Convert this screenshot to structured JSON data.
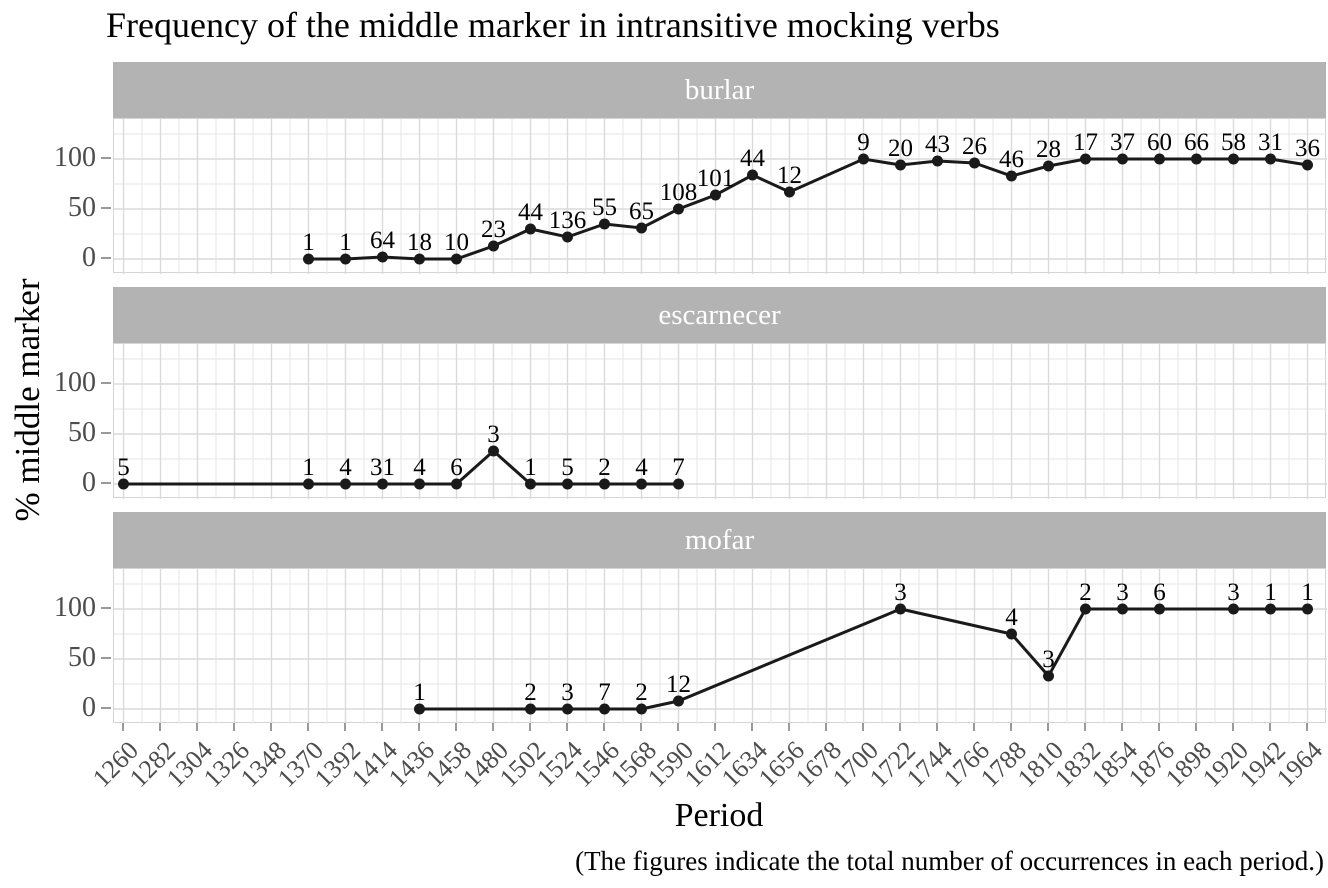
{
  "title": "Frequency of the middle marker in intransitive mocking verbs",
  "caption": "(The figures indicate the total number of occurrences in each period.)",
  "axes": {
    "x_label": "Period",
    "y_label": "% middle marker",
    "y_ticks": [
      100,
      50,
      0
    ],
    "x_ticks": [
      1260,
      1282,
      1304,
      1326,
      1348,
      1370,
      1392,
      1414,
      1436,
      1458,
      1480,
      1502,
      1524,
      1546,
      1568,
      1590,
      1612,
      1634,
      1656,
      1678,
      1700,
      1722,
      1744,
      1766,
      1788,
      1810,
      1832,
      1854,
      1876,
      1898,
      1920,
      1942,
      1964
    ]
  },
  "colors": {
    "strip_bg": "#b3b3b3",
    "strip_text": "#ffffff",
    "series": "#1a1a1a",
    "grid_major": "#dadada",
    "grid_minor": "#e9e9e9",
    "axis_text": "#4d4d4d",
    "tick_mark": "#9a9a9a"
  },
  "chart_data": {
    "type": "line",
    "title": "Frequency of the middle marker in intransitive mocking verbs",
    "xlabel": "Period",
    "ylabel": "% middle marker",
    "xlim": [
      1260,
      1964
    ],
    "ylim": [
      0,
      100
    ],
    "x_tick_step": 22,
    "grid": "major+minor",
    "legend": "none",
    "point_fields": "period / percent middle marker / total occurrences label",
    "facets": [
      {
        "label": "burlar",
        "points": [
          {
            "period": 1370,
            "pct": 0,
            "n": "1"
          },
          {
            "period": 1392,
            "pct": 0,
            "n": "1"
          },
          {
            "period": 1414,
            "pct": 2,
            "n": "64"
          },
          {
            "period": 1436,
            "pct": 0,
            "n": "18"
          },
          {
            "period": 1458,
            "pct": 0,
            "n": "10"
          },
          {
            "period": 1480,
            "pct": 13,
            "n": "23"
          },
          {
            "period": 1502,
            "pct": 30,
            "n": "44"
          },
          {
            "period": 1524,
            "pct": 22,
            "n": "136"
          },
          {
            "period": 1546,
            "pct": 35,
            "n": "55"
          },
          {
            "period": 1568,
            "pct": 31,
            "n": "65"
          },
          {
            "period": 1590,
            "pct": 50,
            "n": "108"
          },
          {
            "period": 1612,
            "pct": 64,
            "n": "101"
          },
          {
            "period": 1634,
            "pct": 84,
            "n": "44"
          },
          {
            "period": 1656,
            "pct": 67,
            "n": "12"
          },
          {
            "period": 1700,
            "pct": 100,
            "n": "9"
          },
          {
            "period": 1722,
            "pct": 94,
            "n": "20"
          },
          {
            "period": 1744,
            "pct": 98,
            "n": "43"
          },
          {
            "period": 1766,
            "pct": 96,
            "n": "26"
          },
          {
            "period": 1788,
            "pct": 83,
            "n": "46"
          },
          {
            "period": 1810,
            "pct": 93,
            "n": "28"
          },
          {
            "period": 1832,
            "pct": 100,
            "n": "17"
          },
          {
            "period": 1854,
            "pct": 100,
            "n": "37"
          },
          {
            "period": 1876,
            "pct": 100,
            "n": "60"
          },
          {
            "period": 1898,
            "pct": 100,
            "n": "66"
          },
          {
            "period": 1920,
            "pct": 100,
            "n": "58"
          },
          {
            "period": 1942,
            "pct": 100,
            "n": "31"
          },
          {
            "period": 1964,
            "pct": 94,
            "n": "36"
          }
        ]
      },
      {
        "label": "escarnecer",
        "points": [
          {
            "period": 1260,
            "pct": 0,
            "n": "5"
          },
          {
            "period": 1370,
            "pct": 0,
            "n": "1"
          },
          {
            "period": 1392,
            "pct": 0,
            "n": "4"
          },
          {
            "period": 1414,
            "pct": 0,
            "n": "31"
          },
          {
            "period": 1436,
            "pct": 0,
            "n": "4"
          },
          {
            "period": 1458,
            "pct": 0,
            "n": "6"
          },
          {
            "period": 1480,
            "pct": 33,
            "n": "3"
          },
          {
            "period": 1502,
            "pct": 0,
            "n": "1"
          },
          {
            "period": 1524,
            "pct": 0,
            "n": "5"
          },
          {
            "period": 1546,
            "pct": 0,
            "n": "2"
          },
          {
            "period": 1568,
            "pct": 0,
            "n": "4"
          },
          {
            "period": 1590,
            "pct": 0,
            "n": "7"
          }
        ]
      },
      {
        "label": "mofar",
        "points": [
          {
            "period": 1436,
            "pct": 0,
            "n": "1"
          },
          {
            "period": 1502,
            "pct": 0,
            "n": "2"
          },
          {
            "period": 1524,
            "pct": 0,
            "n": "3"
          },
          {
            "period": 1546,
            "pct": 0,
            "n": "7"
          },
          {
            "period": 1568,
            "pct": 0,
            "n": "2"
          },
          {
            "period": 1590,
            "pct": 8,
            "n": "12"
          },
          {
            "period": 1722,
            "pct": 100,
            "n": "3"
          },
          {
            "period": 1788,
            "pct": 75,
            "n": "4"
          },
          {
            "period": 1810,
            "pct": 33,
            "n": "3"
          },
          {
            "period": 1832,
            "pct": 100,
            "n": "2"
          },
          {
            "period": 1854,
            "pct": 100,
            "n": "3"
          },
          {
            "period": 1876,
            "pct": 100,
            "n": "6"
          },
          {
            "period": 1920,
            "pct": 100,
            "n": "3"
          },
          {
            "period": 1942,
            "pct": 100,
            "n": "1"
          },
          {
            "period": 1964,
            "pct": 100,
            "n": "1"
          }
        ]
      }
    ]
  }
}
